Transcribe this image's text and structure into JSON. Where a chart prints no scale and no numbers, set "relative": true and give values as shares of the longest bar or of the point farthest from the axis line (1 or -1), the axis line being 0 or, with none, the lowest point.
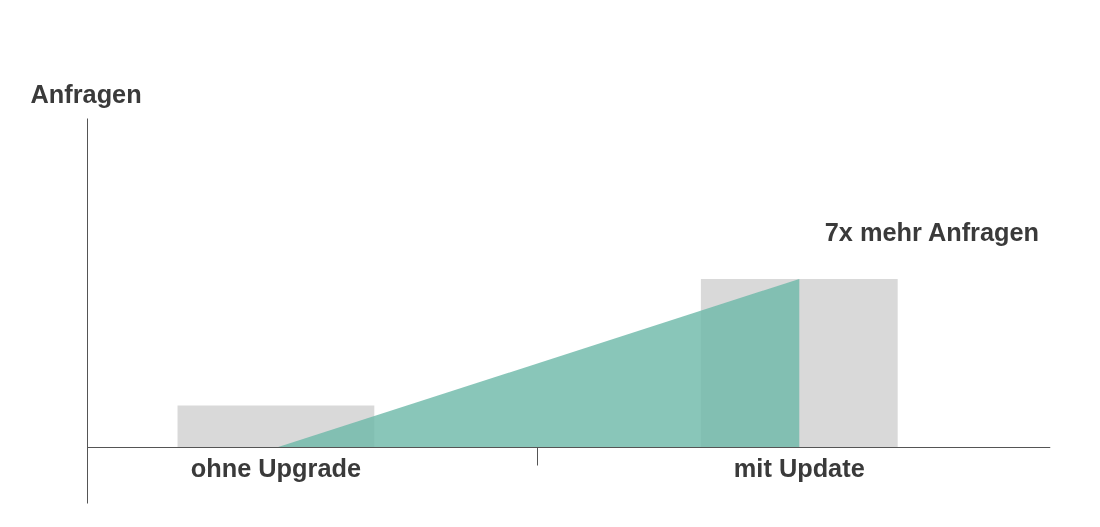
{
  "chart_data": {
    "type": "bar",
    "relative": true,
    "categories": [
      "ohne Upgrade",
      "mit Update"
    ],
    "series": [
      {
        "color": "#d9d9d9",
        "values": [
          0.25,
          1
        ]
      },
      {
        "type": "area",
        "color": "#6cb8a8",
        "values": [
          0,
          1
        ]
      }
    ],
    "annotations": [
      "Anfragen",
      "7x mehr Anfragen"
    ],
    "grid": false
  }
}
